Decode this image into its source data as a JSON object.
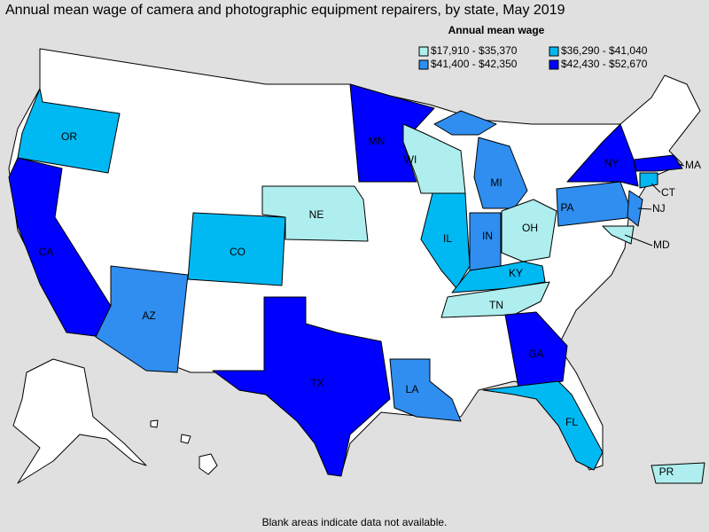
{
  "title": "Annual mean wage of camera and photographic equipment repairers, by state, May 2019",
  "legend": {
    "title": "Annual mean wage",
    "items": [
      {
        "label": "$17,910 - $35,370",
        "color": "#aeeeee",
        "states": [
          "WI",
          "NE",
          "OH",
          "TN",
          "MD",
          "PR"
        ]
      },
      {
        "label": "$36,290 - $41,040",
        "color": "#00b9f2",
        "states": [
          "OR",
          "CO",
          "IL",
          "KY",
          "FL",
          "CT"
        ]
      },
      {
        "label": "$41,400 - $42,350",
        "color": "#2f8ef0",
        "states": [
          "AZ",
          "LA",
          "MI",
          "IN",
          "PA",
          "NJ"
        ]
      },
      {
        "label": "$42,430 - $52,670",
        "color": "#0000ff",
        "states": [
          "CA",
          "TX",
          "MN",
          "NY",
          "GA",
          "MA"
        ]
      }
    ]
  },
  "footnote": "Blank areas indicate data not available."
}
